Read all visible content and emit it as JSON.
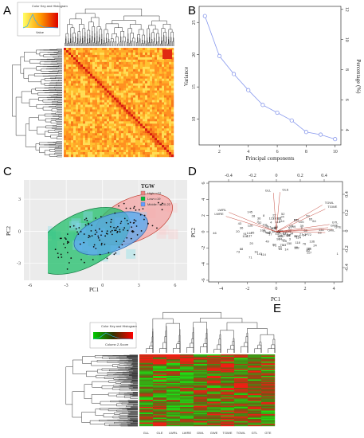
{
  "figure": {
    "panel_labels": [
      "A",
      "B",
      "C",
      "D",
      "E"
    ]
  },
  "panel_a": {
    "key_title": "Color Key and Histogram",
    "key_xlabel": "Value",
    "key_ylabel": "Count"
  },
  "chart_data": [
    {
      "panel": "B",
      "type": "line",
      "xlabel": "Principal components",
      "ylabel_left": "Variance",
      "ylabel_right": "Percentage (%)",
      "x": [
        1,
        2,
        3,
        4,
        5,
        6,
        7,
        8,
        9,
        10
      ],
      "y": [
        26.0,
        19.8,
        17.0,
        14.5,
        12.2,
        11.0,
        9.8,
        8.0,
        7.6,
        6.9
      ],
      "xticks": [
        2,
        4,
        6,
        8,
        10
      ],
      "yticks_left": [
        10,
        15,
        20,
        25
      ],
      "yticks_right": [
        4,
        6,
        8,
        10,
        12
      ],
      "xlim": [
        0.6,
        10.4
      ],
      "ylim_left": [
        6.0,
        27.5
      ],
      "ylim_right": [
        3.0,
        12.2
      ]
    },
    {
      "panel": "C",
      "type": "scatter",
      "xlabel": "PC1",
      "ylabel": "PC2",
      "xticks": [
        "-6",
        "-3",
        "0",
        "3",
        "6"
      ],
      "yticks": [
        "-3",
        "0",
        "3"
      ],
      "legend_title": "TGW",
      "legend_position": "top-right",
      "series": [
        {
          "name": "High>=22",
          "color": "#f08080"
        },
        {
          "name": "Low<=19",
          "color": "#00ba38"
        },
        {
          "name": "Middle: <=20-22",
          "color": "#619cff"
        }
      ]
    },
    {
      "panel": "D",
      "type": "scatter",
      "xlabel": "PC1",
      "ylabel": "PC2",
      "xticks": [
        "-2",
        "0",
        "2",
        "4"
      ],
      "xticks_hidden_leftmost": "-4",
      "yticks": [
        "-6",
        "-4",
        "-2",
        "0",
        "2",
        "4",
        "6"
      ],
      "top_ticks": [
        "-0.4",
        "-0.2",
        "0",
        "0.2",
        "0.4"
      ],
      "right_ticks": [
        "-0.4",
        "-0.2",
        "0",
        "0.2",
        "0.4"
      ],
      "loadings": [
        {
          "name": "GLL",
          "color": "#c0392b"
        },
        {
          "name": "GLE",
          "color": "#c0392b"
        },
        {
          "name": "LWRL",
          "color": "#c0392b"
        },
        {
          "name": "LWRE",
          "color": "#c0392b"
        },
        {
          "name": "TGWE",
          "color": "#c0392b"
        },
        {
          "name": "TGWL",
          "color": "#c0392b"
        },
        {
          "name": "GTL",
          "color": "#c0392b"
        },
        {
          "name": "GTE",
          "color": "#c0392b"
        },
        {
          "name": "GWL",
          "color": "#c0392b"
        },
        {
          "name": "GWE",
          "color": "#c0392b"
        }
      ]
    },
    {
      "panel": "E",
      "type": "heatmap",
      "columns": [
        "GLL",
        "GLE",
        "LWRL",
        "LWRE",
        "GWL",
        "GWE",
        "TGWE",
        "TGWL",
        "GTL",
        "GTE"
      ],
      "key_title": "Color Key and Histogram",
      "key_xlabel": "Column Z-Score"
    }
  ]
}
